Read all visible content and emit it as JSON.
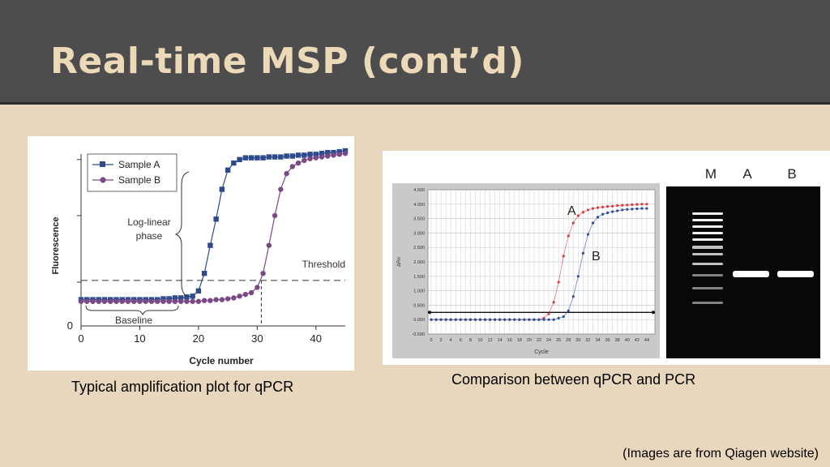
{
  "slide": {
    "title": "Real-time MSP (cont’d)",
    "caption_left": "Typical amplification plot for qPCR",
    "caption_right": "Comparison between qPCR and PCR",
    "source_note": "(Images are from Qiagen website)",
    "colors": {
      "background": "#e8d6bd",
      "header": "#4d4d4d",
      "title": "#ecd9b8"
    }
  },
  "chart_data": [
    {
      "type": "line",
      "xlabel": "Cycle number",
      "ylabel": "Fluorescence",
      "xlim": [
        0,
        45
      ],
      "ylim": [
        0,
        10
      ],
      "x_ticks": [
        0,
        10,
        20,
        30,
        40
      ],
      "y_tick_labels": [
        "0"
      ],
      "threshold": 2.6,
      "threshold_label": "Threshold",
      "annotations": [
        "Log-linear phase",
        "Baseline"
      ],
      "annotation_lines": [
        "Log-linear",
        "phase"
      ],
      "series": [
        {
          "name": "Sample A",
          "color": "#2c4a8c",
          "marker": "square",
          "x": [
            0,
            1,
            2,
            3,
            4,
            5,
            6,
            7,
            8,
            9,
            10,
            11,
            12,
            13,
            14,
            15,
            16,
            17,
            18,
            19,
            20,
            21,
            22,
            23,
            24,
            25,
            26,
            27,
            28,
            29,
            30,
            31,
            32,
            33,
            34,
            35,
            36,
            37,
            38,
            39,
            40,
            41,
            42,
            43,
            44,
            45
          ],
          "y": [
            1.5,
            1.5,
            1.5,
            1.5,
            1.5,
            1.5,
            1.5,
            1.5,
            1.5,
            1.5,
            1.5,
            1.5,
            1.5,
            1.5,
            1.55,
            1.55,
            1.6,
            1.6,
            1.65,
            1.7,
            2.0,
            3.0,
            4.6,
            6.1,
            7.8,
            8.9,
            9.3,
            9.5,
            9.6,
            9.6,
            9.6,
            9.6,
            9.65,
            9.65,
            9.65,
            9.7,
            9.7,
            9.75,
            9.75,
            9.8,
            9.8,
            9.85,
            9.9,
            9.9,
            9.95,
            10.0
          ]
        },
        {
          "name": "Sample B",
          "color": "#7a4a86",
          "marker": "circle",
          "x": [
            0,
            1,
            2,
            3,
            4,
            5,
            6,
            7,
            8,
            9,
            10,
            11,
            12,
            13,
            14,
            15,
            16,
            17,
            18,
            19,
            20,
            21,
            22,
            23,
            24,
            25,
            26,
            27,
            28,
            29,
            30,
            31,
            32,
            33,
            34,
            35,
            36,
            37,
            38,
            39,
            40,
            41,
            42,
            43,
            44,
            45
          ],
          "y": [
            1.4,
            1.4,
            1.4,
            1.4,
            1.4,
            1.4,
            1.4,
            1.4,
            1.4,
            1.4,
            1.4,
            1.4,
            1.4,
            1.4,
            1.4,
            1.4,
            1.4,
            1.4,
            1.4,
            1.4,
            1.4,
            1.45,
            1.45,
            1.5,
            1.5,
            1.55,
            1.6,
            1.7,
            1.8,
            1.9,
            2.2,
            3.0,
            4.6,
            6.3,
            7.8,
            8.7,
            9.1,
            9.3,
            9.45,
            9.55,
            9.6,
            9.65,
            9.7,
            9.75,
            9.8,
            9.85
          ]
        }
      ]
    },
    {
      "type": "line",
      "xlabel": "Cycle",
      "ylabel": "ΔRn",
      "xlim": [
        0,
        45
      ],
      "ylim": [
        -0.5,
        4.5
      ],
      "x_ticks": [
        0,
        2,
        4,
        6,
        8,
        10,
        12,
        14,
        16,
        18,
        20,
        22,
        24,
        26,
        28,
        30,
        32,
        34,
        36,
        38,
        40,
        42,
        44
      ],
      "y_ticks": [
        "4.500",
        "4.000",
        "3.500",
        "3.000",
        "2.500",
        "2.000",
        "1.500",
        "1.000",
        "0.500",
        "0.000",
        "-0.500"
      ],
      "y_tick_values": [
        4.5,
        4.0,
        3.5,
        3.0,
        2.5,
        2.0,
        1.5,
        1.0,
        0.5,
        0.0,
        -0.5
      ],
      "threshold": 0.25,
      "series": [
        {
          "name": "A",
          "color": "#d63a3a",
          "x": [
            0,
            1,
            2,
            3,
            4,
            5,
            6,
            7,
            8,
            9,
            10,
            11,
            12,
            13,
            14,
            15,
            16,
            17,
            18,
            19,
            20,
            21,
            22,
            23,
            24,
            25,
            26,
            27,
            28,
            29,
            30,
            31,
            32,
            33,
            34,
            35,
            36,
            37,
            38,
            39,
            40,
            41,
            42,
            43,
            44
          ],
          "y": [
            0,
            0,
            0,
            0,
            0,
            0,
            0,
            0,
            0,
            0,
            0,
            0,
            0,
            0,
            0,
            0,
            0,
            0,
            0,
            0,
            0,
            0,
            0,
            0.05,
            0.2,
            0.6,
            1.3,
            2.2,
            2.9,
            3.35,
            3.6,
            3.72,
            3.8,
            3.85,
            3.88,
            3.9,
            3.92,
            3.93,
            3.95,
            3.96,
            3.97,
            3.98,
            3.99,
            4.0,
            4.0
          ]
        },
        {
          "name": "B",
          "color": "#2b4f9a",
          "x": [
            0,
            1,
            2,
            3,
            4,
            5,
            6,
            7,
            8,
            9,
            10,
            11,
            12,
            13,
            14,
            15,
            16,
            17,
            18,
            19,
            20,
            21,
            22,
            23,
            24,
            25,
            26,
            27,
            28,
            29,
            30,
            31,
            32,
            33,
            34,
            35,
            36,
            37,
            38,
            39,
            40,
            41,
            42,
            43,
            44
          ],
          "y": [
            0,
            0,
            0,
            0,
            0,
            0,
            0,
            0,
            0,
            0,
            0,
            0,
            0,
            0,
            0,
            0,
            0,
            0,
            0,
            0,
            0,
            0,
            0,
            0,
            0,
            0,
            0.05,
            0.1,
            0.3,
            0.8,
            1.5,
            2.3,
            2.95,
            3.35,
            3.55,
            3.65,
            3.7,
            3.74,
            3.77,
            3.8,
            3.82,
            3.83,
            3.84,
            3.85,
            3.85
          ]
        }
      ]
    }
  ],
  "gel": {
    "lane_labels": [
      "M",
      "A",
      "B"
    ],
    "ladder_bands": 11,
    "sample_band_lanes": [
      "A",
      "B"
    ]
  }
}
